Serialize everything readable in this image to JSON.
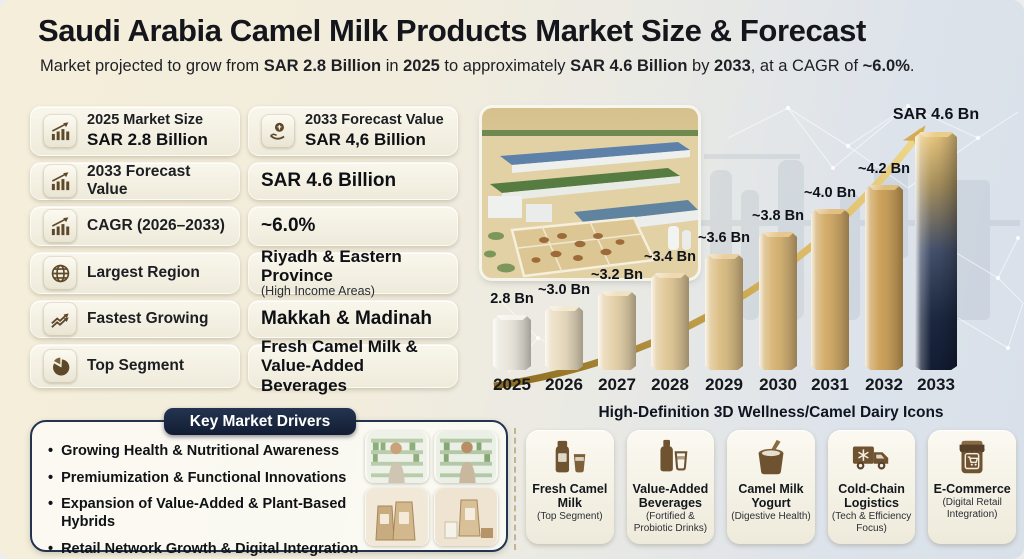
{
  "header": {
    "title": "Saudi Arabia Camel Milk Products Market Size & Forecast",
    "subtitle_parts": [
      {
        "t": "Market projected to grow from ",
        "b": false
      },
      {
        "t": "SAR 2.8 Billion",
        "b": true
      },
      {
        "t": " in ",
        "b": false
      },
      {
        "t": "2025",
        "b": true
      },
      {
        "t": " to approximately ",
        "b": false
      },
      {
        "t": "SAR 4.6 Billion",
        "b": true
      },
      {
        "t": " by ",
        "b": false
      },
      {
        "t": "2033",
        "b": true
      },
      {
        "t": ", at a CAGR of ",
        "b": false
      },
      {
        "t": "~6.0%",
        "b": true
      },
      {
        "t": ".",
        "b": false
      }
    ]
  },
  "stats": {
    "row1a": {
      "icon": "bar-chart-growth-icon",
      "label": "2025 Market Size",
      "value": "SAR 2.8 Billion"
    },
    "row1b": {
      "icon": "coin-hand-icon",
      "label": "2033 Forecast Value",
      "value": "SAR 4,6 Billion"
    },
    "row2": {
      "icon": "bar-chart-growth-icon",
      "label": "2033 Forecast Value",
      "value": "SAR 4.6 Billion"
    },
    "row3": {
      "icon": "bar-chart-growth-icon",
      "label": "CAGR (2026–2033)",
      "value": "~6.0%"
    },
    "row4": {
      "icon": "globe-icon",
      "label": "Largest Region",
      "value": "Riyadh & Eastern Province",
      "value_sub": "(High Income Areas)"
    },
    "row5": {
      "icon": "growth-arrows-icon",
      "label": "Fastest Growing",
      "value": "Makkah & Madinah"
    },
    "row6": {
      "icon": "pie-chart-icon",
      "label": "Top Segment",
      "value": "Fresh Camel Milk &",
      "value2": "Value-Added Beverages"
    }
  },
  "chart_data": {
    "type": "bar",
    "categories": [
      "2025",
      "2026",
      "2027",
      "2028",
      "2029",
      "2030",
      "2031",
      "2032",
      "2033"
    ],
    "values": [
      2.8,
      3.0,
      3.2,
      3.4,
      3.6,
      3.8,
      4.0,
      4.2,
      4.6
    ],
    "bar_labels": [
      "2.8 Bn",
      "~3.0 Bn",
      "~3.2 Bn",
      "~3.4 Bn",
      "~3.6 Bn",
      "~3.8 Bn",
      "~4.0 Bn",
      "~4.2 Bn",
      "SAR 4.6 Bn"
    ],
    "unit": "SAR Billion",
    "ylim": [
      0,
      5
    ],
    "highlight_category": "2033",
    "legend": "none",
    "grid": false,
    "annotations": [
      "golden upward trend arrow",
      "camel dairy farm photo at left"
    ]
  },
  "drivers": {
    "title": "Key Market Drivers",
    "bullets": [
      "Growing Health & Nutritional Awareness",
      "Premiumization & Functional Innovations",
      "Expansion of Value-Added & Plant-Based Hybrids",
      "Retail Network Growth & Digital Integration"
    ]
  },
  "icons_section": {
    "title": "High-Definition 3D Wellness/Camel Dairy Icons",
    "cards": [
      {
        "icon": "milk-bottle-glass-icon",
        "title": "Fresh Camel Milk",
        "subtitle": "(Top Segment)"
      },
      {
        "icon": "beverage-bottle-glass-icon",
        "title": "Value-Added Beverages",
        "subtitle": "(Fortified & Probiotic Drinks)"
      },
      {
        "icon": "yogurt-cup-icon",
        "title": "Camel Milk Yogurt",
        "subtitle": "(Digestive Health)"
      },
      {
        "icon": "cold-chain-truck-icon",
        "title": "Cold-Chain Logistics",
        "subtitle": "(Tech & Efficiency Focus)"
      },
      {
        "icon": "ecommerce-storefront-icon",
        "title": "E-Commerce",
        "subtitle": "(Digital Retail Integration)"
      }
    ]
  },
  "colors": {
    "gold": "#cda45c",
    "gold_light": "#ecd9a8",
    "navy": "#16233f",
    "final_bar_top_gold": "#ecca81",
    "final_bar_navy": "#121c33",
    "icon_brown": "#6f5330",
    "first_bar_silver": "#eae6dc"
  }
}
